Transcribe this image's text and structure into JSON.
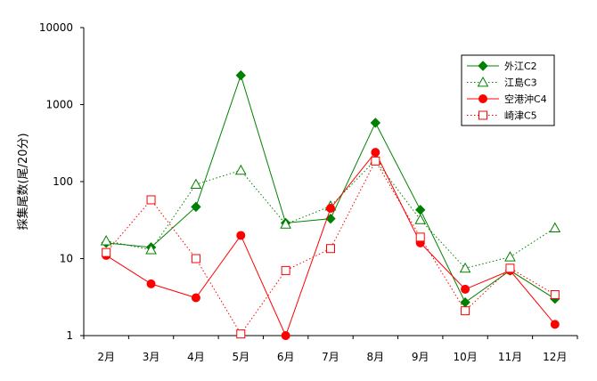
{
  "chart_data": {
    "type": "line",
    "ylabel": "採集尾数(尾/20分)",
    "y_scale": "log",
    "ylim": [
      1,
      10000
    ],
    "y_ticks": [
      "1",
      "10",
      "100",
      "1000",
      "10000"
    ],
    "categories": [
      "2月",
      "3月",
      "4月",
      "5月",
      "6月",
      "7月",
      "8月",
      "9月",
      "10月",
      "11月",
      "12月"
    ],
    "grid": false,
    "legend_position": "top-right",
    "series": [
      {
        "name": "外江C2",
        "color": "#008000",
        "line_style": "solid",
        "marker": "filled-diamond",
        "values": [
          16,
          14,
          47,
          2400,
          29,
          33,
          580,
          43,
          2.7,
          7,
          3
        ]
      },
      {
        "name": "江島C3",
        "color": "#008000",
        "line_style": "dotted",
        "marker": "hollow-triangle",
        "values": [
          17,
          13,
          92,
          140,
          28,
          48,
          190,
          32,
          7.5,
          10.5,
          25
        ]
      },
      {
        "name": "空港沖C4",
        "color": "#ff0000",
        "line_style": "solid",
        "marker": "filled-circle",
        "values": [
          11,
          4.7,
          3.1,
          20,
          1,
          45,
          240,
          16,
          4,
          7,
          1.4
        ]
      },
      {
        "name": "崎津C5",
        "color": "#ff0000",
        "line_style": "dotted",
        "marker": "hollow-square",
        "values": [
          12,
          58,
          10,
          1.05,
          7,
          13.5,
          185,
          19,
          2.1,
          7.5,
          3.4
        ]
      }
    ]
  }
}
